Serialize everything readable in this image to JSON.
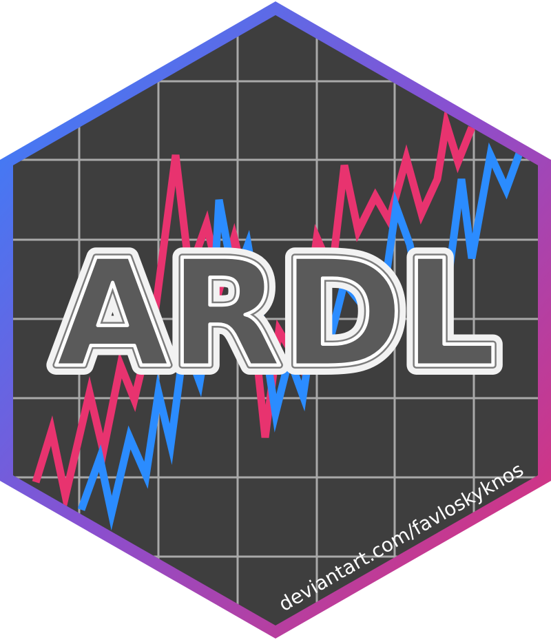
{
  "logo": {
    "title": "ARDL",
    "credit": "deviantart.com/favloskyknos"
  },
  "colors": {
    "background": "#ffffff",
    "panel": "#3e3e3e",
    "grid": "#a9a9a9",
    "border_start": "#2f86ff",
    "border_mid": "#8a4fcf",
    "border_end": "#e52d6f",
    "series_pink": "#e8336f",
    "series_blue": "#2b8cff",
    "title_fill": "#5a5a5a",
    "title_outline": "#f2f2f2",
    "credit": "#ffffff"
  },
  "icons": {
    "hexagon": "hexagon-badge-icon",
    "series_pink": "zigzag-line-icon",
    "series_blue": "zigzag-line-icon"
  }
}
